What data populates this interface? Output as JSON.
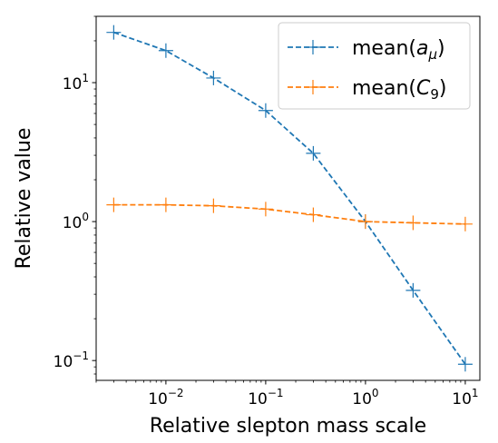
{
  "chart_data": {
    "type": "line",
    "xlabel": "Relative slepton mass scale",
    "ylabel": "Relative value",
    "xscale": "log",
    "yscale": "log",
    "xlim": [
      0.002,
      14
    ],
    "ylim": [
      0.072,
      30
    ],
    "x_ticks": [
      {
        "value": 0.01,
        "base": "10",
        "exp": "−2"
      },
      {
        "value": 0.1,
        "base": "10",
        "exp": "−1"
      },
      {
        "value": 1,
        "base": "10",
        "exp": "0"
      },
      {
        "value": 10,
        "base": "10",
        "exp": "1"
      }
    ],
    "y_ticks": [
      {
        "value": 0.1,
        "base": "10",
        "exp": "−1"
      },
      {
        "value": 1,
        "base": "10",
        "exp": "0"
      },
      {
        "value": 10,
        "base": "10",
        "exp": "1"
      }
    ],
    "grid": false,
    "legend_position": "top-right",
    "series": [
      {
        "name_main": "mean(",
        "name_var": "a",
        "name_sub": "μ",
        "name_end": ")",
        "color": "#1f77b4",
        "linestyle": "dashed",
        "marker": "+",
        "x": [
          0.003,
          0.01,
          0.03,
          0.1,
          0.3,
          1,
          3,
          10
        ],
        "y": [
          23,
          17,
          10.8,
          6.3,
          3.1,
          1.0,
          0.32,
          0.094
        ]
      },
      {
        "name_main": "mean(",
        "name_var": "C",
        "name_sub": "9",
        "name_end": ")",
        "color": "#ff7f0e",
        "linestyle": "dashed",
        "marker": "+",
        "x": [
          0.003,
          0.01,
          0.03,
          0.1,
          0.3,
          1,
          3,
          10
        ],
        "y": [
          1.32,
          1.32,
          1.3,
          1.23,
          1.12,
          1.0,
          0.98,
          0.96
        ]
      }
    ]
  }
}
